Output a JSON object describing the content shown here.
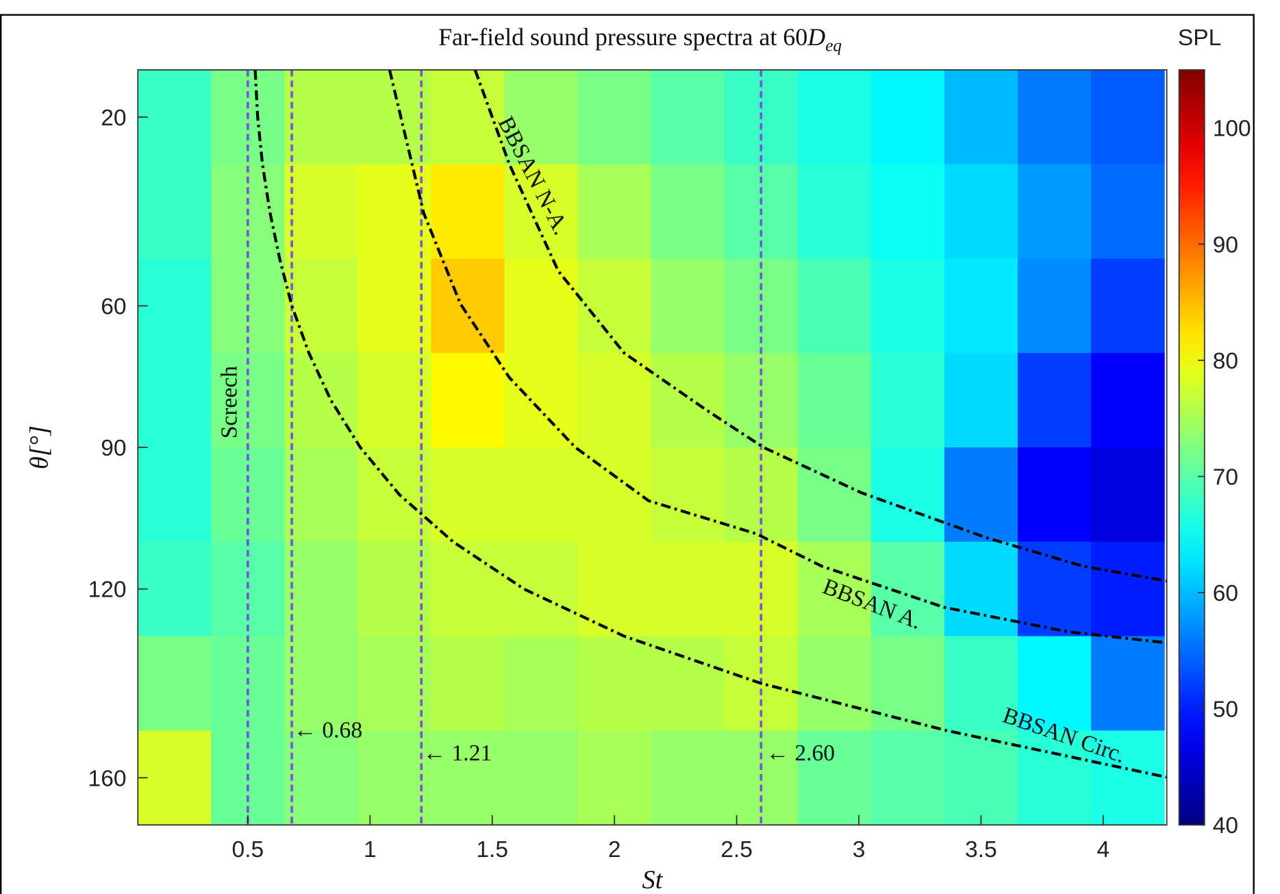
{
  "chart_data": {
    "type": "heatmap",
    "title": "Far-field sound pressure spectra at 60",
    "title_symbol": "D",
    "title_subscript": "eq",
    "x_label": "St",
    "y_label": "θ[°]",
    "colorbar_label": "SPL",
    "xlim": [
      0.05,
      4.26
    ],
    "ylim": [
      10,
      170
    ],
    "y_reversed": true,
    "xticks": [
      0.5,
      1,
      1.5,
      2,
      2.5,
      3,
      3.5,
      4
    ],
    "yticks": [
      20,
      60,
      90,
      120,
      160
    ],
    "clim": [
      40,
      105
    ],
    "cticks": [
      40,
      50,
      60,
      70,
      80,
      90,
      100
    ],
    "colormap": "jet",
    "x_edges": [
      0.05,
      0.35,
      0.65,
      0.95,
      1.25,
      1.55,
      1.85,
      2.15,
      2.45,
      2.75,
      3.05,
      3.35,
      3.65,
      3.95,
      4.25
    ],
    "y_edges": [
      10,
      30,
      50,
      70,
      90,
      110,
      130,
      150,
      170
    ],
    "z": [
      [
        68,
        72,
        76,
        76,
        77,
        74,
        72,
        70,
        68,
        66,
        64,
        60,
        56,
        54
      ],
      [
        68,
        73,
        78,
        79,
        82,
        78,
        75,
        72,
        70,
        67,
        65,
        62,
        58,
        55
      ],
      [
        67,
        73,
        77,
        79,
        84,
        79,
        77,
        74,
        72,
        69,
        66,
        63,
        57,
        52
      ],
      [
        67,
        72,
        76,
        78,
        81,
        79,
        78,
        76,
        74,
        71,
        67,
        62,
        52,
        48
      ],
      [
        67,
        71,
        75,
        77,
        78,
        78,
        78,
        77,
        76,
        72,
        66,
        56,
        48,
        46
      ],
      [
        68,
        70,
        74,
        76,
        77,
        77,
        78,
        78,
        78,
        75,
        70,
        62,
        52,
        50
      ],
      [
        72,
        71,
        74,
        75,
        76,
        75,
        76,
        76,
        77,
        74,
        72,
        68,
        64,
        56
      ],
      [
        78,
        71,
        73,
        74,
        74,
        74,
        75,
        74,
        74,
        71,
        70,
        69,
        67,
        66
      ]
    ],
    "curves": [
      {
        "name": "BBSAN N-A.",
        "color": "#000000",
        "x": [
          1.43,
          1.57,
          1.77,
          2.04,
          2.38,
          2.61,
          3.01,
          3.52,
          3.92,
          4.26
        ],
        "y": [
          10,
          30,
          52.6,
          70,
          82.2,
          90,
          99.6,
          109.1,
          115.2,
          118.3
        ]
      },
      {
        "name": "BBSAN A.",
        "color": "#000000",
        "x": [
          1.08,
          1.22,
          1.37,
          1.57,
          1.84,
          2.14,
          2.58,
          2.85,
          3.35,
          3.86,
          4.26
        ],
        "y": [
          10,
          40.4,
          59.6,
          75.2,
          90,
          101.3,
          108.3,
          115.2,
          123.9,
          129.1,
          131.4
        ]
      },
      {
        "name": "BBSAN Circ.",
        "color": "#000000",
        "x": [
          0.53,
          0.54,
          0.56,
          0.59,
          0.63,
          0.68,
          0.75,
          0.84,
          0.96,
          1.12,
          1.34,
          1.63,
          2.04,
          2.6,
          3.36,
          4.27
        ],
        "y": [
          10,
          20,
          30,
          40,
          50,
          60,
          70,
          80,
          90,
          100,
          110,
          120,
          130,
          140,
          150,
          160
        ]
      }
    ],
    "vlines": [
      {
        "x": 0.5,
        "label": "Screech",
        "color": "#7b4fe0"
      },
      {
        "x": 0.68,
        "label": "← 0.68",
        "color": "#7b4fe0"
      },
      {
        "x": 1.21,
        "label": "← 1.21",
        "color": "#7b4fe0"
      },
      {
        "x": 2.6,
        "label": "← 2.60",
        "color": "#7b4fe0"
      }
    ]
  }
}
